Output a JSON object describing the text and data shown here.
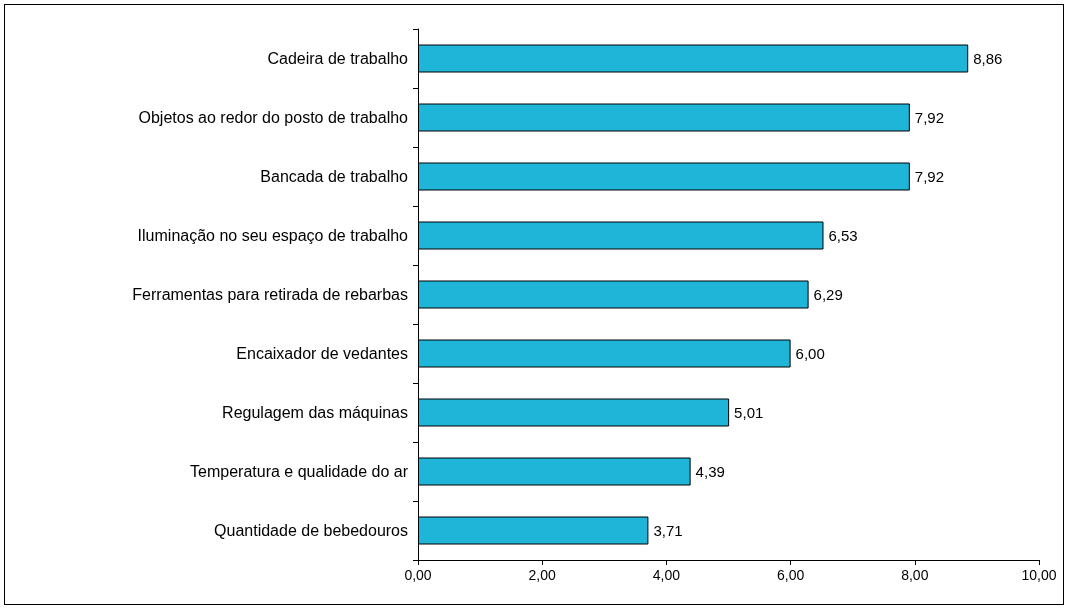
{
  "chart_data": {
    "type": "bar",
    "orientation": "horizontal",
    "categories": [
      "Cadeira de trabalho",
      "Objetos ao redor do posto de trabalho",
      "Bancada de trabalho",
      "Iluminação no seu espaço de trabalho",
      "Ferramentas para retirada de rebarbas",
      "Encaixador de vedantes",
      "Regulagem das máquinas",
      "Temperatura e qualidade do ar",
      "Quantidade de bebedouros"
    ],
    "values": [
      8.86,
      7.92,
      7.92,
      6.53,
      6.29,
      6.0,
      5.01,
      4.39,
      3.71
    ],
    "value_labels": [
      "8,86",
      "7,92",
      "7,92",
      "6,53",
      "6,29",
      "6,00",
      "5,01",
      "4,39",
      "3,71"
    ],
    "color": "#1fb5d8",
    "xlim": [
      0,
      10
    ],
    "xticks": [
      {
        "value": 0,
        "label": "0,00"
      },
      {
        "value": 2,
        "label": "2,00"
      },
      {
        "value": 4,
        "label": "4,00"
      },
      {
        "value": 6,
        "label": "6,00"
      },
      {
        "value": 8,
        "label": "8,00"
      },
      {
        "value": 10,
        "label": "10,00"
      }
    ],
    "grid": false
  }
}
